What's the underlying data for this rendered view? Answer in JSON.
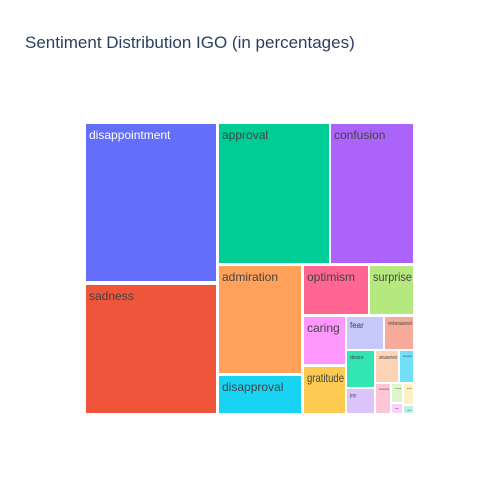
{
  "chart_data": {
    "type": "treemap",
    "title": "Sentiment Distribution IGO (in percentages)",
    "items": [
      {
        "label": "disappointment",
        "value": 14.9,
        "color": "#636efa",
        "label_color": "#ffffff"
      },
      {
        "label": "sadness",
        "value": 14.0,
        "color": "#ef553b",
        "label_color": "#444444"
      },
      {
        "label": "approval",
        "value": 10.9,
        "color": "#00cc96",
        "label_color": "#444444"
      },
      {
        "label": "confusion",
        "value": 9.2,
        "color": "#ab63fa",
        "label_color": "#444444"
      },
      {
        "label": "admiration",
        "value": 8.1,
        "color": "#ffa15a",
        "label_color": "#444444"
      },
      {
        "label": "disapproval",
        "value": 3.1,
        "color": "#19d3f3",
        "label_color": "#444444"
      },
      {
        "label": "optimism",
        "value": 3.3,
        "color": "#ff6692",
        "label_color": "#444444"
      },
      {
        "label": "surprise",
        "value": 2.2,
        "color": "#b6e880",
        "label_color": "#444444"
      },
      {
        "label": "caring",
        "value": 2.2,
        "color": "#ff97ff",
        "label_color": "#444444"
      },
      {
        "label": "fear",
        "value": 1.6,
        "color": "#c6c9fa",
        "label_color": "#444444"
      },
      {
        "label": "embarrassment",
        "value": 1.0,
        "color": "#f7a99a",
        "label_color": "#444444"
      },
      {
        "label": "gratitude",
        "value": 1.5,
        "color": "#fecb52",
        "label_color": "#444444"
      },
      {
        "label": "desire",
        "value": 1.2,
        "color": "#33e5b2",
        "label_color": "#444444"
      },
      {
        "label": "amusement",
        "value": 1.2,
        "color": "#fdd5b6",
        "label_color": "#444444"
      },
      {
        "label": "annoyance",
        "value": 0.6,
        "color": "#6fe0f5",
        "label_color": "#444444"
      },
      {
        "label": "joy",
        "value": 0.9,
        "color": "#dcc4fc",
        "label_color": "#444444"
      },
      {
        "label": "curiosity",
        "value": 0.5,
        "color": "#fdc6d6",
        "label_color": "#444444"
      },
      {
        "label": "excitement",
        "value": 0.3,
        "color": "#e0f5cc",
        "label_color": "#444444"
      },
      {
        "label": "love",
        "value": 0.2,
        "color": "#fcd0fc",
        "label_color": "#444444"
      },
      {
        "label": "pride",
        "value": 0.2,
        "color": "#fff0c4",
        "label_color": "#444444"
      },
      {
        "label": "relief",
        "value": 0.1,
        "color": "#b9f2e2",
        "label_color": "#444444"
      }
    ]
  }
}
